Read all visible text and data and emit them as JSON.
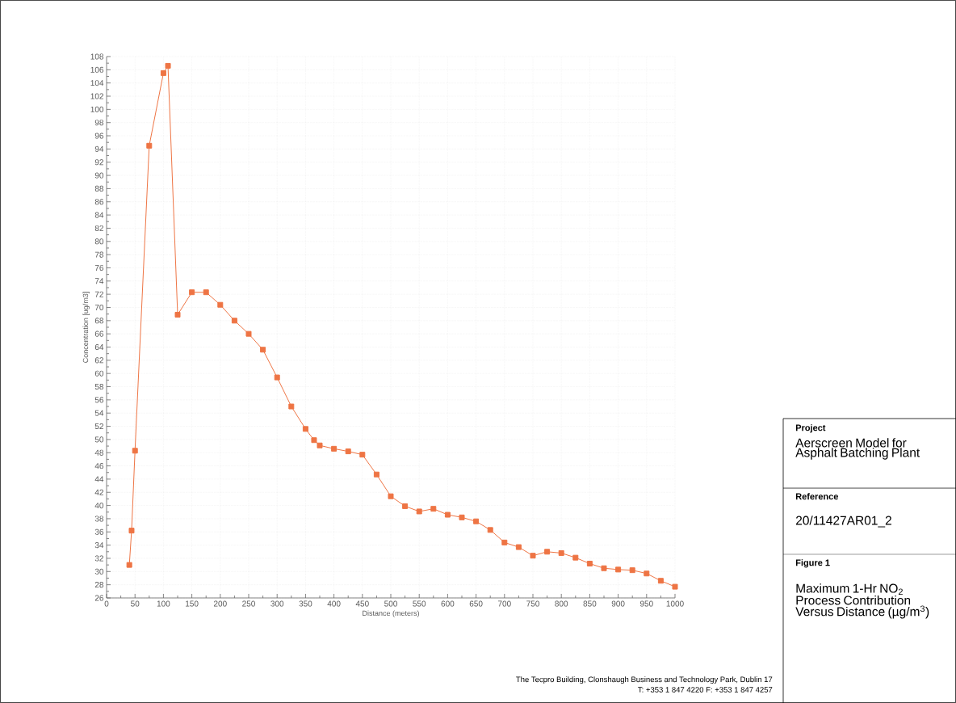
{
  "chart_data": {
    "type": "line",
    "title": "Maximum 1-Hr NO$_{2}$ Process Contribution Versus Distance (µg/m$^{3}$)",
    "xlabel": "Distance (meters)",
    "ylabel": "Concentration [ug/m3]",
    "annotations": [
      "Project",
      "Aerscreen Model for Asphalt Batching Plant",
      "Reference",
      "20/11427AR01_2",
      "Figure 1",
      "The Tecpro Building, Clonshaugh Business and Technology Park, Dublin 17",
      "T: +353 1 847 4220    F: +353 1 847 4257"
    ],
    "x": [
      40,
      44,
      50,
      75,
      100,
      108,
      125,
      150,
      175,
      200,
      225,
      250,
      275,
      300,
      325,
      350,
      365,
      375,
      400,
      425,
      450,
      475,
      500,
      525,
      550,
      575,
      600,
      625,
      650,
      675,
      700,
      725,
      750,
      775,
      800,
      825,
      850,
      875,
      900,
      925,
      950,
      975,
      1000
    ],
    "series": [
      {
        "color": "#ee7444",
        "values": [
          31.0,
          36.2,
          48.3,
          94.5,
          105.5,
          106.6,
          68.9,
          72.3,
          72.3,
          70.4,
          68.0,
          66.0,
          63.6,
          59.4,
          55.0,
          51.6,
          49.9,
          49.1,
          48.6,
          48.2,
          47.7,
          44.7,
          41.4,
          39.9,
          39.1,
          39.5,
          38.6,
          38.2,
          37.6,
          36.3,
          34.4,
          33.7,
          32.4,
          33.0,
          32.8,
          32.1,
          31.2,
          30.5,
          30.3,
          30.2,
          29.7,
          28.6,
          27.7
        ]
      }
    ],
    "xlim": [
      0,
      1000
    ],
    "ylim": [
      26,
      108
    ],
    "xticks": [
      0,
      50,
      100,
      150,
      200,
      250,
      300,
      350,
      400,
      450,
      500,
      550,
      600,
      650,
      700,
      750,
      800,
      850,
      900,
      950,
      1000
    ],
    "yticks": [
      26,
      28,
      30,
      32,
      34,
      36,
      38,
      40,
      42,
      44,
      46,
      48,
      50,
      52,
      54,
      56,
      58,
      60,
      62,
      64,
      66,
      68,
      70,
      72,
      74,
      76,
      78,
      80,
      82,
      84,
      86,
      88,
      90,
      92,
      94,
      96,
      98,
      100,
      102,
      104,
      106,
      108
    ],
    "grid": true,
    "marker": "square",
    "line_style": "solid"
  }
}
